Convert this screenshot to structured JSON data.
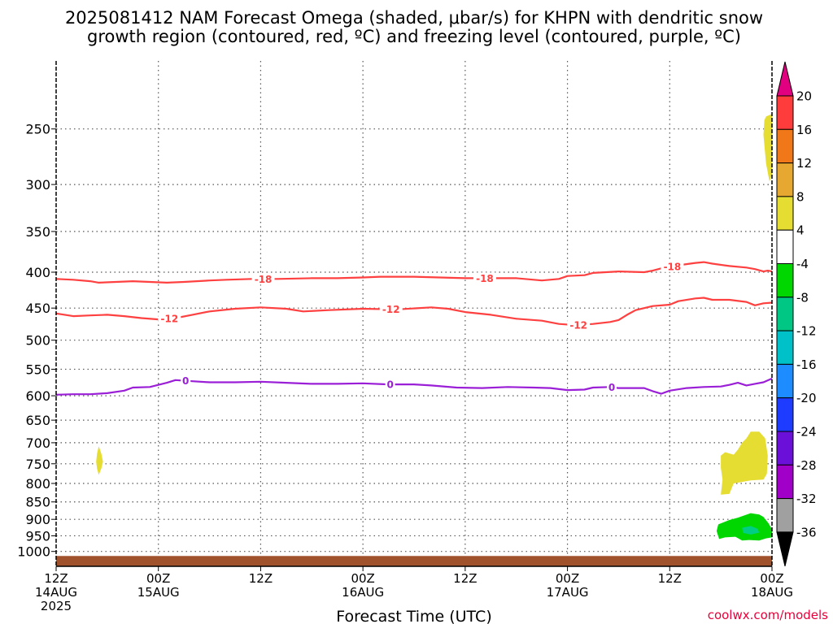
{
  "title": {
    "line1": "2025081412 NAM Forecast Omega (shaded, μbar/s) for KHPN with dendritic snow",
    "line2": "growth region (contoured, red, ºC) and freezing level (contoured, purple, ºC)"
  },
  "credit": "coolwx.com/models",
  "chart_data": {
    "type": "contour",
    "title": "2025081412 NAM Forecast Omega (shaded, μbar/s) for KHPN with dendritic snow growth region (contoured, red, ºC) and freezing level (contoured, purple, ºC)",
    "xlabel": "Forecast Time (UTC)",
    "ylabel": "",
    "xlim_hours": [
      0,
      84
    ],
    "ylim_hPa": [
      200,
      1050
    ],
    "y_scale": "log",
    "y_ticks": [
      "250",
      "300",
      "350",
      "400",
      "450",
      "500",
      "550",
      "600",
      "650",
      "700",
      "750",
      "800",
      "850",
      "900",
      "950",
      "1000"
    ],
    "x_ticks": [
      {
        "hour": 0,
        "lines": [
          "12Z",
          "14AUG",
          "2025"
        ]
      },
      {
        "hour": 12,
        "lines": [
          "00Z",
          "15AUG"
        ]
      },
      {
        "hour": 24,
        "lines": [
          "12Z"
        ]
      },
      {
        "hour": 36,
        "lines": [
          "00Z",
          "16AUG"
        ]
      },
      {
        "hour": 48,
        "lines": [
          "12Z"
        ]
      },
      {
        "hour": 60,
        "lines": [
          "00Z",
          "17AUG"
        ]
      },
      {
        "hour": 72,
        "lines": [
          "12Z"
        ]
      },
      {
        "hour": 84,
        "lines": [
          "00Z",
          "18AUG"
        ]
      }
    ],
    "grid": true,
    "contours": [
      {
        "level": -18,
        "color": "#ff4040",
        "label": "-18",
        "label_hours": [
          24.3,
          50.3,
          72.3
        ],
        "points": [
          [
            0,
            409
          ],
          [
            2,
            410
          ],
          [
            4,
            412
          ],
          [
            5,
            414
          ],
          [
            7,
            413
          ],
          [
            9,
            412
          ],
          [
            11,
            413
          ],
          [
            13,
            414
          ],
          [
            15,
            413
          ],
          [
            18,
            411
          ],
          [
            20,
            410
          ],
          [
            23,
            409
          ],
          [
            26,
            409
          ],
          [
            30,
            408
          ],
          [
            33,
            408
          ],
          [
            36,
            407
          ],
          [
            38,
            406
          ],
          [
            42,
            406
          ],
          [
            45,
            407
          ],
          [
            48,
            408
          ],
          [
            51,
            408
          ],
          [
            54,
            408
          ],
          [
            57,
            411
          ],
          [
            59,
            409
          ],
          [
            60,
            405
          ],
          [
            62,
            404
          ],
          [
            63,
            401
          ],
          [
            66,
            399
          ],
          [
            69,
            400
          ],
          [
            70,
            398
          ],
          [
            71,
            395
          ],
          [
            73,
            391
          ],
          [
            75,
            388
          ],
          [
            76,
            387
          ],
          [
            77,
            389
          ],
          [
            79,
            392
          ],
          [
            81,
            394
          ],
          [
            82,
            396
          ],
          [
            83,
            399
          ],
          [
            83.5,
            398
          ],
          [
            84,
            399
          ]
        ]
      },
      {
        "level": -12,
        "color": "#ff4040",
        "label": "-12",
        "label_hours": [
          13.3,
          39.3,
          61.3
        ],
        "points": [
          [
            0,
            458
          ],
          [
            2,
            462
          ],
          [
            4,
            461
          ],
          [
            6,
            460
          ],
          [
            8,
            462
          ],
          [
            10,
            465
          ],
          [
            12,
            467
          ],
          [
            14,
            465
          ],
          [
            16,
            460
          ],
          [
            18,
            455
          ],
          [
            21,
            451
          ],
          [
            24,
            449
          ],
          [
            27,
            451
          ],
          [
            29,
            455
          ],
          [
            32,
            453
          ],
          [
            36,
            451
          ],
          [
            40,
            452
          ],
          [
            44,
            449
          ],
          [
            46,
            451
          ],
          [
            48,
            456
          ],
          [
            51,
            460
          ],
          [
            54,
            466
          ],
          [
            57,
            469
          ],
          [
            59,
            474
          ],
          [
            61,
            476
          ],
          [
            63,
            474
          ],
          [
            65,
            471
          ],
          [
            66,
            468
          ],
          [
            67,
            460
          ],
          [
            68,
            453
          ],
          [
            70,
            447
          ],
          [
            72,
            445
          ],
          [
            73,
            440
          ],
          [
            75,
            436
          ],
          [
            76,
            435
          ],
          [
            77,
            438
          ],
          [
            79,
            438
          ],
          [
            81,
            441
          ],
          [
            82,
            446
          ],
          [
            83,
            443
          ],
          [
            84,
            442
          ]
        ]
      },
      {
        "level": 0,
        "color": "#9a1fd6",
        "label": "0",
        "label_hours": [
          15.2,
          39.2,
          65.2
        ],
        "points": [
          [
            0,
            598
          ],
          [
            2,
            597
          ],
          [
            4,
            597
          ],
          [
            6,
            595
          ],
          [
            8,
            590
          ],
          [
            9,
            584
          ],
          [
            11,
            583
          ],
          [
            13,
            575
          ],
          [
            14,
            570
          ],
          [
            16,
            572
          ],
          [
            18,
            574
          ],
          [
            21,
            574
          ],
          [
            24,
            573
          ],
          [
            27,
            575
          ],
          [
            30,
            577
          ],
          [
            33,
            577
          ],
          [
            36,
            576
          ],
          [
            39,
            578
          ],
          [
            42,
            578
          ],
          [
            44,
            580
          ],
          [
            47,
            584
          ],
          [
            50,
            585
          ],
          [
            53,
            583
          ],
          [
            56,
            584
          ],
          [
            58,
            585
          ],
          [
            60,
            589
          ],
          [
            62,
            588
          ],
          [
            63,
            584
          ],
          [
            65,
            583
          ],
          [
            66,
            585
          ],
          [
            69,
            585
          ],
          [
            70,
            591
          ],
          [
            71,
            596
          ],
          [
            72,
            590
          ],
          [
            74,
            585
          ],
          [
            76,
            583
          ],
          [
            78,
            582
          ],
          [
            79,
            579
          ],
          [
            80,
            575
          ],
          [
            81,
            580
          ],
          [
            82,
            577
          ],
          [
            83,
            574
          ],
          [
            84,
            567
          ]
        ]
      }
    ],
    "shaded_regions": [
      {
        "range": "4 to 8",
        "color": "#e6dd32",
        "points": [
          [
            83.3,
            240
          ],
          [
            84,
            238
          ],
          [
            84,
            290
          ],
          [
            83.7,
            297
          ],
          [
            83.3,
            280
          ],
          [
            83,
            255
          ],
          [
            83.1,
            243
          ]
        ]
      },
      {
        "range": "4 to 8",
        "color": "#e6dd32",
        "points": [
          [
            5,
            708
          ],
          [
            5.3,
            725
          ],
          [
            5.5,
            745
          ],
          [
            5.3,
            762
          ],
          [
            5,
            778
          ],
          [
            4.8,
            762
          ],
          [
            4.7,
            745
          ],
          [
            4.8,
            725
          ]
        ]
      },
      {
        "range": "4 to 8",
        "color": "#e6dd32",
        "points": [
          [
            78,
            730
          ],
          [
            78.5,
            722
          ],
          [
            79.5,
            728
          ],
          [
            80,
            716
          ],
          [
            80.5,
            700
          ],
          [
            81,
            690
          ],
          [
            81.5,
            675
          ],
          [
            82.5,
            675
          ],
          [
            83.2,
            690
          ],
          [
            83.5,
            730
          ],
          [
            83.4,
            775
          ],
          [
            83,
            790
          ],
          [
            81.5,
            792
          ],
          [
            80.5,
            796
          ],
          [
            79.5,
            800
          ],
          [
            79,
            828
          ],
          [
            78,
            830
          ],
          [
            78.2,
            790
          ],
          [
            78,
            760
          ]
        ]
      },
      {
        "range": "-8 to -4",
        "color": "#00d700",
        "points": [
          [
            77.5,
            935
          ],
          [
            77.7,
            915
          ],
          [
            79,
            902
          ],
          [
            80,
            895
          ],
          [
            81.5,
            882
          ],
          [
            82.5,
            886
          ],
          [
            83,
            893
          ],
          [
            83.6,
            912
          ],
          [
            84,
            930
          ],
          [
            84,
            955
          ],
          [
            83.3,
            958
          ],
          [
            82.5,
            965
          ],
          [
            81.3,
            963
          ],
          [
            80.5,
            965
          ],
          [
            79.7,
            953
          ],
          [
            78.5,
            955
          ],
          [
            77.8,
            960
          ]
        ]
      },
      {
        "range": "-12 to -8",
        "color": "#00ce84",
        "points": [
          [
            80.5,
            925
          ],
          [
            81.5,
            920
          ],
          [
            82.3,
            928
          ],
          [
            82.5,
            940
          ],
          [
            81.5,
            946
          ],
          [
            80.6,
            941
          ]
        ]
      }
    ],
    "terrain": {
      "color": "#a0522d",
      "top_hPa": 1015
    },
    "colorbar": {
      "ticks": [
        "20",
        "16",
        "12",
        "8",
        "4",
        "-4",
        "-8",
        "-12",
        "-16",
        "-20",
        "-24",
        "-28",
        "-32",
        "-36"
      ],
      "colors": [
        "#e00080",
        "#ff3c3c",
        "#f07818",
        "#e6a830",
        "#e6dd32",
        "#ffffff",
        "#00d700",
        "#00c884",
        "#00c0c8",
        "#1c8cff",
        "#1e3cff",
        "#6a10d8",
        "#a000c8",
        "#a0a0a0",
        "#000000"
      ]
    }
  }
}
